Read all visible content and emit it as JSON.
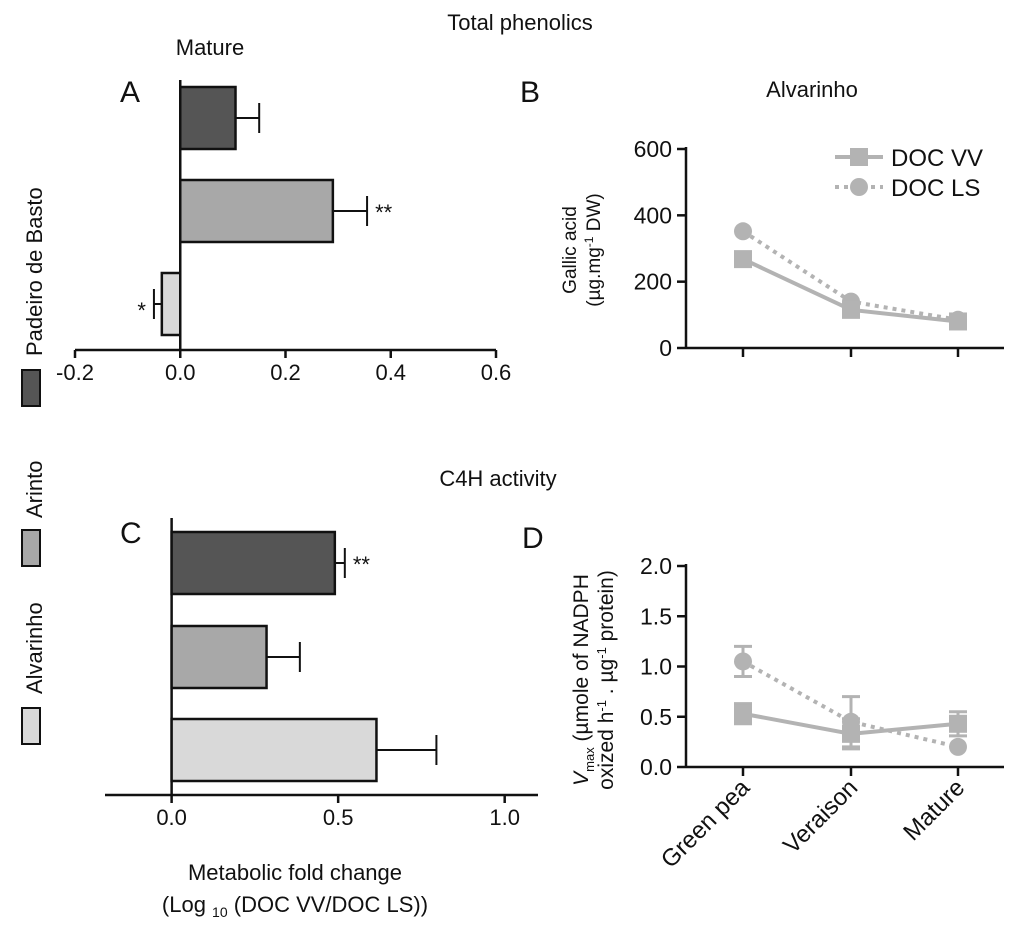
{
  "figure": {
    "heading_top": "Total phenolics",
    "heading_mid": "C4H activity",
    "xlabel_line1": "Metabolic fold change",
    "xlabel_line2_pre": "(Log ",
    "xlabel_line2_sub": "10",
    "xlabel_line2_post": " (DOC VV/DOC LS))"
  },
  "legend_left": {
    "entries": [
      {
        "label": "Padeiro de Basto",
        "color": "#555555"
      },
      {
        "label": "Arinto",
        "color": "#a8a8a8"
      },
      {
        "label": "Alvarinho",
        "color": "#d9d9d9"
      }
    ]
  },
  "chart_data": [
    {
      "panel": "A",
      "type": "bar",
      "orientation": "horizontal",
      "title": "Mature",
      "categories": [
        "Padeiro de Basto",
        "Arinto",
        "Alvarinho"
      ],
      "values": [
        0.105,
        0.29,
        -0.035
      ],
      "errors": [
        0.045,
        0.065,
        0.015
      ],
      "significance": [
        "",
        "**",
        "*"
      ],
      "colors": [
        "#555555",
        "#a8a8a8",
        "#d9d9d9"
      ],
      "xlim": [
        -0.2,
        0.6
      ],
      "xticks": [
        -0.2,
        0.0,
        0.2,
        0.4,
        0.6
      ],
      "tick_labels": [
        "-0.2",
        "0.0",
        "0.2",
        "0.4",
        "0.6"
      ]
    },
    {
      "panel": "B",
      "type": "line",
      "title": "Alvarinho",
      "ylabel_line1": "Gallic acid",
      "ylabel_line2_pre": "(µg.mg",
      "ylabel_line2_sup": "-1",
      "ylabel_line2_post": " DW)",
      "x": [
        "Green pea",
        "Veraison",
        "Mature"
      ],
      "ylim": [
        0,
        600
      ],
      "yticks": [
        0,
        200,
        400,
        600
      ],
      "tick_labels": [
        "0",
        "200",
        "400",
        "600"
      ],
      "series": [
        {
          "name": "DOC VV",
          "values": [
            268,
            115,
            80
          ],
          "marker": "square",
          "style": "solid"
        },
        {
          "name": "DOC LS",
          "values": [
            352,
            140,
            85
          ],
          "marker": "circle",
          "style": "dotted"
        }
      ]
    },
    {
      "panel": "C",
      "type": "bar",
      "orientation": "horizontal",
      "categories": [
        "Padeiro de Basto",
        "Arinto",
        "Alvarinho"
      ],
      "values": [
        0.49,
        0.285,
        0.615
      ],
      "errors": [
        0.03,
        0.1,
        0.18
      ],
      "significance": [
        "**",
        "",
        ""
      ],
      "colors": [
        "#555555",
        "#a8a8a8",
        "#d9d9d9"
      ],
      "xlim": [
        -0.2,
        1.1
      ],
      "xticks": [
        0.0,
        0.5,
        1.0
      ],
      "tick_labels": [
        "0.0",
        "0.5",
        "1.0"
      ]
    },
    {
      "panel": "D",
      "type": "line",
      "ylabel_v": "V",
      "ylabel_sub": "max",
      "ylabel_rest": " (µmole of NADPH",
      "ylabel_line2_pre": "oxized h",
      "ylabel_line2_sup1": "-1",
      "ylabel_line2_mid": " . µg",
      "ylabel_line2_sup2": "-1",
      "ylabel_line2_post": " protein)",
      "x": [
        "Green pea",
        "Veraison",
        "Mature"
      ],
      "ylim": [
        0,
        2.0
      ],
      "yticks": [
        0,
        0.5,
        1.0,
        1.5,
        2.0
      ],
      "tick_labels": [
        "0.0",
        "0.5",
        "1.0",
        "1.5",
        "2.0"
      ],
      "series": [
        {
          "name": "DOC VV",
          "values": [
            0.53,
            0.33,
            0.43
          ],
          "errors": [
            0.1,
            0.15,
            0.12
          ],
          "marker": "square",
          "style": "solid"
        },
        {
          "name": "DOC LS",
          "values": [
            1.05,
            0.45,
            0.2
          ],
          "errors": [
            0.15,
            0.25,
            0.0
          ],
          "marker": "circle",
          "style": "dotted"
        }
      ]
    }
  ]
}
